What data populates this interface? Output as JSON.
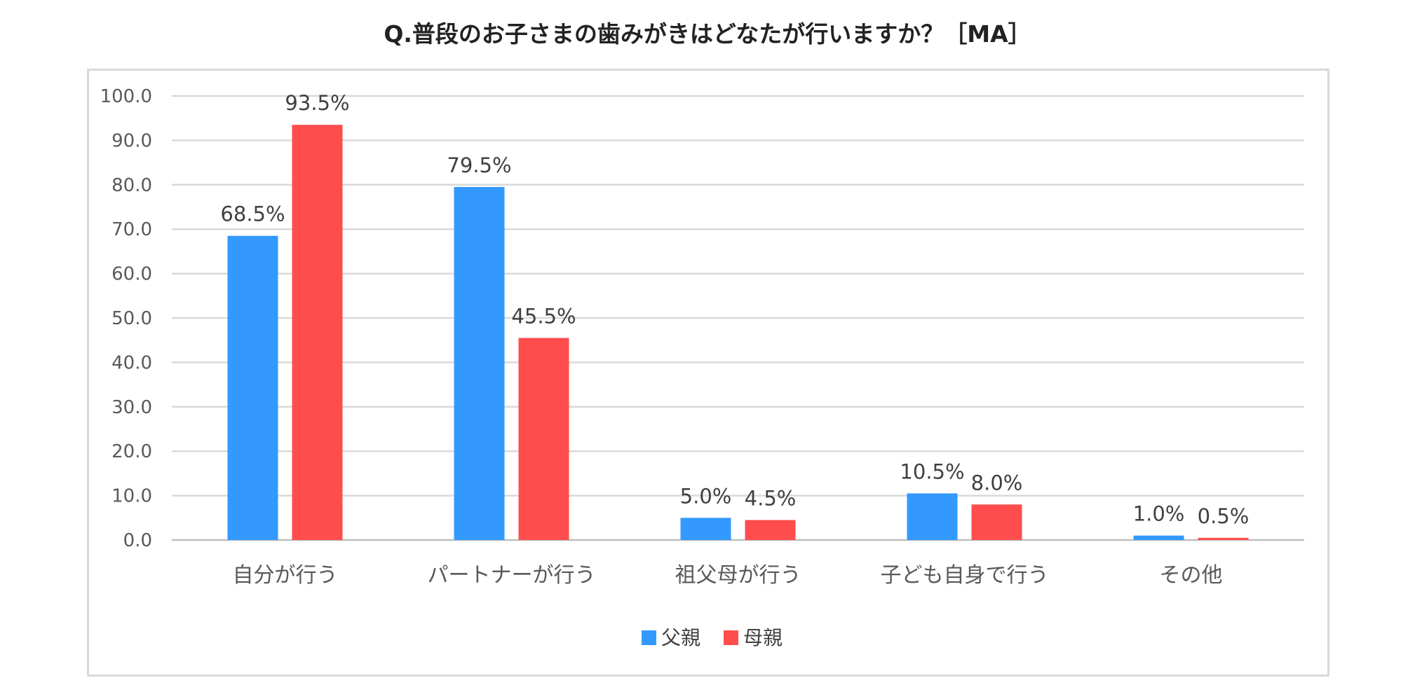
{
  "chart_data": {
    "type": "bar",
    "title": "Q.普段のお子さまの歯みがきはどなたが行いますか？［MA］",
    "categories": [
      "自分が行う",
      "パートナーが行う",
      "祖父母が行う",
      "子ども自身で行う",
      "その他"
    ],
    "series": [
      {
        "name": "父親",
        "color": "#3399ff",
        "values": [
          68.5,
          79.5,
          5.0,
          10.5,
          1.0
        ],
        "labels": [
          "68.5%",
          "79.5%",
          "5.0%",
          "10.5%",
          "1.0%"
        ]
      },
      {
        "name": "母親",
        "color": "#ff4d4d",
        "values": [
          93.5,
          45.5,
          4.5,
          8.0,
          0.5
        ],
        "labels": [
          "93.5%",
          "45.5%",
          "4.5%",
          "8.0%",
          "0.5%"
        ]
      }
    ],
    "yticks": [
      "0.0",
      "10.0",
      "20.0",
      "30.0",
      "40.0",
      "50.0",
      "60.0",
      "70.0",
      "80.0",
      "90.0",
      "100.0"
    ],
    "ylim": [
      0,
      100
    ],
    "grid": true,
    "legend_position": "bottom"
  }
}
